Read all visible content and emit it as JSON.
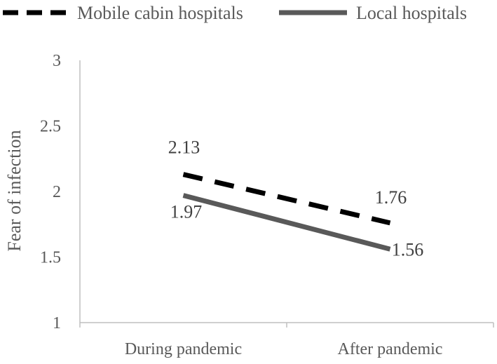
{
  "chart_data": {
    "type": "line",
    "categories": [
      "During pandemic",
      "After pandemic"
    ],
    "series": [
      {
        "name": "Mobile cabin hospitals",
        "values": [
          2.13,
          1.76
        ],
        "labels": [
          "2.13",
          "1.76"
        ],
        "style": "dashed",
        "color": "#000000"
      },
      {
        "name": "Local hospitals",
        "values": [
          1.97,
          1.56
        ],
        "labels": [
          "1.97",
          "1.56"
        ],
        "style": "solid",
        "color": "#595959"
      }
    ],
    "xlabel": "",
    "ylabel": "Fear of infection",
    "ylim": [
      1,
      3
    ],
    "yticks": [
      "1",
      "1.5",
      "2",
      "2.5",
      "3"
    ],
    "grid": false,
    "legend": "top"
  }
}
